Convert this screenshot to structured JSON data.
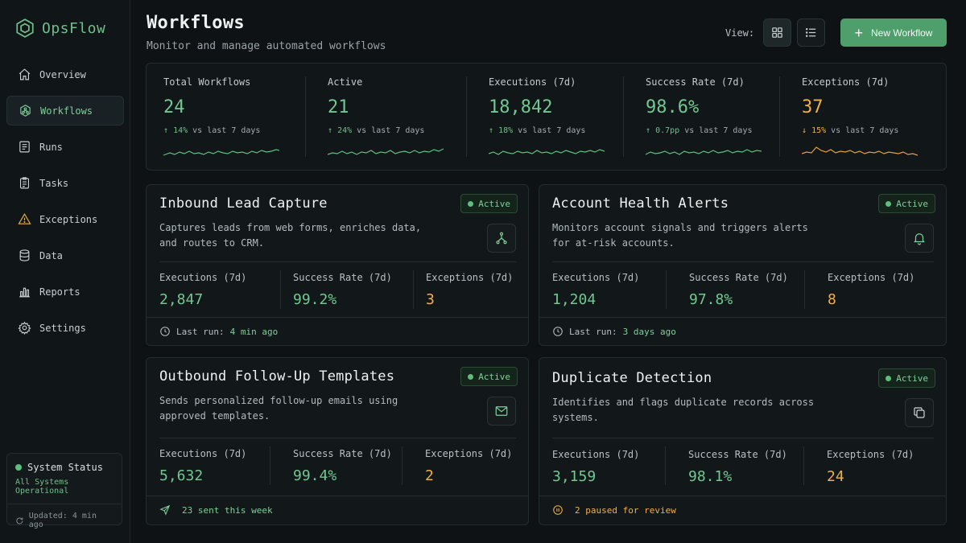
{
  "brand": {
    "name": "OpsFlow"
  },
  "sidebar": {
    "items": [
      {
        "label": "Overview",
        "icon": "home-icon"
      },
      {
        "label": "Workflows",
        "icon": "workflow-icon",
        "active": true
      },
      {
        "label": "Runs",
        "icon": "runs-icon"
      },
      {
        "label": "Tasks",
        "icon": "tasks-icon"
      },
      {
        "label": "Exceptions",
        "icon": "warning-icon"
      },
      {
        "label": "Data",
        "icon": "database-icon"
      },
      {
        "label": "Reports",
        "icon": "bar-chart-icon"
      },
      {
        "label": "Settings",
        "icon": "gear-icon"
      }
    ],
    "status": {
      "title": "System Status",
      "detail": "All Systems Operational",
      "updated": "Updated: 4 min ago"
    }
  },
  "header": {
    "title": "Workflows",
    "subtitle": "Monitor and manage automated workflows",
    "view_label": "View:",
    "new_button": "New Workflow"
  },
  "colors": {
    "accent": "#4f9f6c",
    "positive": "#72c891",
    "warning": "#f0b048",
    "background": "#0e1214"
  },
  "stats": [
    {
      "label": "Total Workflows",
      "value": "24",
      "arrow": "↑",
      "delta": "14%",
      "suffix": "vs last 7 days",
      "trend": "up"
    },
    {
      "label": "Active",
      "value": "21",
      "arrow": "↑",
      "delta": "24%",
      "suffix": "vs last 7 days",
      "trend": "up"
    },
    {
      "label": "Executions (7d)",
      "value": "18,842",
      "arrow": "↑",
      "delta": "18%",
      "suffix": "vs last 7 days",
      "trend": "up"
    },
    {
      "label": "Success Rate (7d)",
      "value": "98.6%",
      "arrow": "↑",
      "delta": "0.7pp",
      "suffix": "vs last 7 days",
      "trend": "up"
    },
    {
      "label": "Exceptions (7d)",
      "value": "37",
      "arrow": "↓",
      "delta": "15%",
      "suffix": "vs last 7 days",
      "trend": "down"
    }
  ],
  "cards": [
    {
      "title": "Inbound Lead Capture",
      "status": "Active",
      "description": "Captures leads from web forms, enriches data, and routes to CRM.",
      "icon": "branch-icon",
      "metrics": [
        {
          "label": "Executions (7d)",
          "value": "2,847"
        },
        {
          "label": "Success Rate (7d)",
          "value": "99.2%"
        },
        {
          "label": "Exceptions (7d)",
          "value": "3"
        }
      ],
      "footer_prefix": "Last run:",
      "footer_value": "4 min ago",
      "footer_icon": "clock-icon"
    },
    {
      "title": "Account Health Alerts",
      "status": "Active",
      "description": "Monitors account signals and triggers alerts for at-risk accounts.",
      "icon": "bell-icon",
      "metrics": [
        {
          "label": "Executions (7d)",
          "value": "1,204"
        },
        {
          "label": "Success Rate (7d)",
          "value": "97.8%"
        },
        {
          "label": "Exceptions (7d)",
          "value": "8"
        }
      ],
      "footer_prefix": "Last run:",
      "footer_value": "3 days ago",
      "footer_icon": "clock-icon"
    },
    {
      "title": "Outbound Follow-Up Templates",
      "status": "Active",
      "description": "Sends personalized follow-up emails using approved templates.",
      "icon": "mail-icon",
      "metrics": [
        {
          "label": "Executions (7d)",
          "value": "5,632"
        },
        {
          "label": "Success Rate (7d)",
          "value": "99.4%"
        },
        {
          "label": "Exceptions (7d)",
          "value": "2"
        }
      ],
      "footer_prefix": "",
      "footer_value": "23 sent this week",
      "footer_icon": "send-icon"
    },
    {
      "title": "Duplicate Detection",
      "status": "Active",
      "description": "Identifies and flags duplicate records across systems.",
      "icon": "copy-icon",
      "metrics": [
        {
          "label": "Executions (7d)",
          "value": "3,159"
        },
        {
          "label": "Success Rate (7d)",
          "value": "98.1%"
        },
        {
          "label": "Exceptions (7d)",
          "value": "24"
        }
      ],
      "footer_prefix": "",
      "footer_value": "2 paused for review",
      "footer_icon": "pause-icon"
    }
  ]
}
